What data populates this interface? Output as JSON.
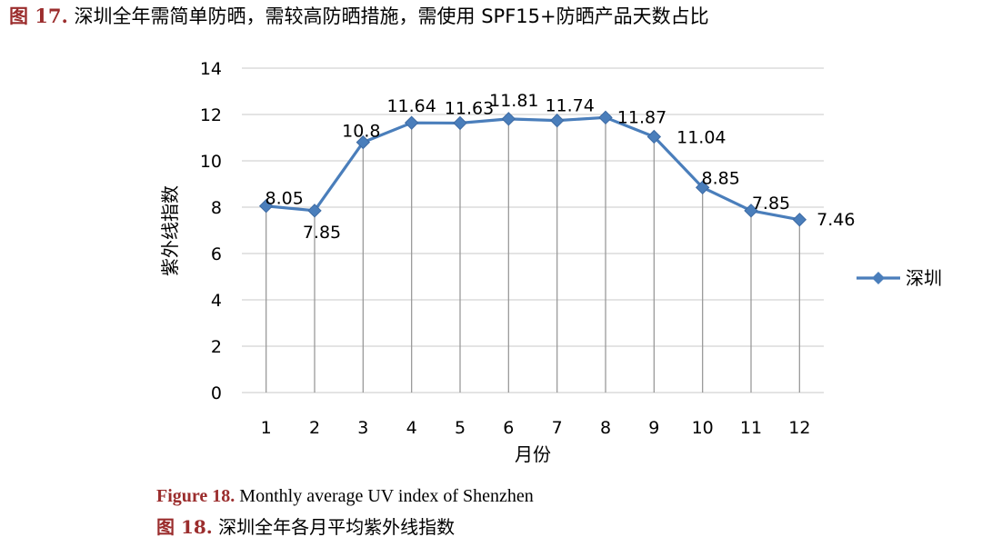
{
  "captions": {
    "top_label": "图 17.",
    "top_text": "深圳全年需简单防晒，需较高防晒措施，需使用 SPF15+防晒产品天数占比",
    "figure_en_label": "Figure 18.",
    "figure_en_text": "Monthly average UV index of Shenzhen",
    "figure_cn_label": "图 18.",
    "figure_cn_text": "深圳全年各月平均紫外线指数"
  },
  "chart_data": {
    "type": "line",
    "title": "",
    "xlabel": "月份",
    "ylabel": "紫外线指数",
    "categories": [
      "1",
      "2",
      "3",
      "4",
      "5",
      "6",
      "7",
      "8",
      "9",
      "10",
      "11",
      "12"
    ],
    "series": [
      {
        "name": "深圳",
        "values": [
          8.05,
          7.85,
          10.8,
          11.64,
          11.63,
          11.81,
          11.74,
          11.87,
          11.04,
          8.85,
          7.85,
          7.46
        ],
        "labels": [
          "8.05",
          "7.85",
          "10.8",
          "11.64",
          "11.63",
          "11.81",
          "11.74",
          "11.87",
          "11.04",
          "8.85",
          "7.85",
          "7.46"
        ],
        "color": "#4a7ebb"
      }
    ],
    "ylim": [
      0,
      14
    ],
    "yticks": [
      "0",
      "2",
      "4",
      "6",
      "8",
      "10",
      "12",
      "14"
    ],
    "grid": true,
    "drop_lines": true,
    "legend_position": "right",
    "marker": "diamond"
  }
}
